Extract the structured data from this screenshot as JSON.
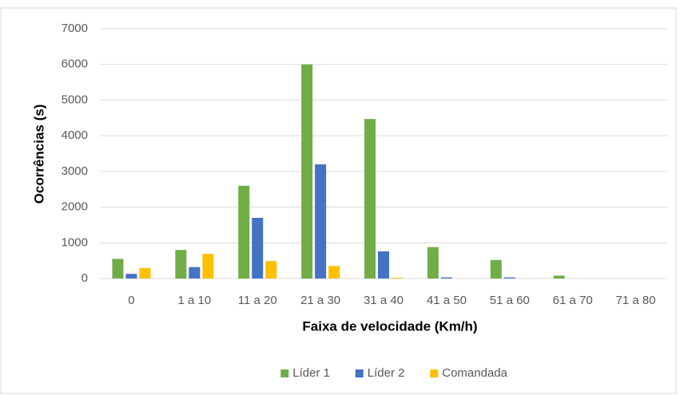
{
  "chart_data": {
    "type": "bar",
    "x_label": "Faixa de velocidade (Km/h)",
    "y_label": "Ocorrências (s)",
    "categories": [
      "0",
      "1 a 10",
      "11 a 20",
      "21 a 30",
      "31 a 40",
      "41 a 50",
      "51 a 60",
      "61 a 70",
      "71 a 80"
    ],
    "series": [
      {
        "name": "Líder 1",
        "color": "#70ad47",
        "values": [
          550,
          800,
          2600,
          6000,
          4470,
          880,
          520,
          80,
          0
        ]
      },
      {
        "name": "Líder 2",
        "color": "#4472c4",
        "values": [
          130,
          320,
          1700,
          3200,
          760,
          30,
          30,
          0,
          0
        ]
      },
      {
        "name": "Comandada",
        "color": "#ffc000",
        "values": [
          290,
          690,
          490,
          350,
          20,
          0,
          0,
          0,
          0
        ]
      }
    ],
    "ylim": [
      0,
      7000
    ],
    "yticks": [
      0,
      1000,
      2000,
      3000,
      4000,
      5000,
      6000,
      7000
    ],
    "grid": true,
    "legend": "bottom"
  }
}
